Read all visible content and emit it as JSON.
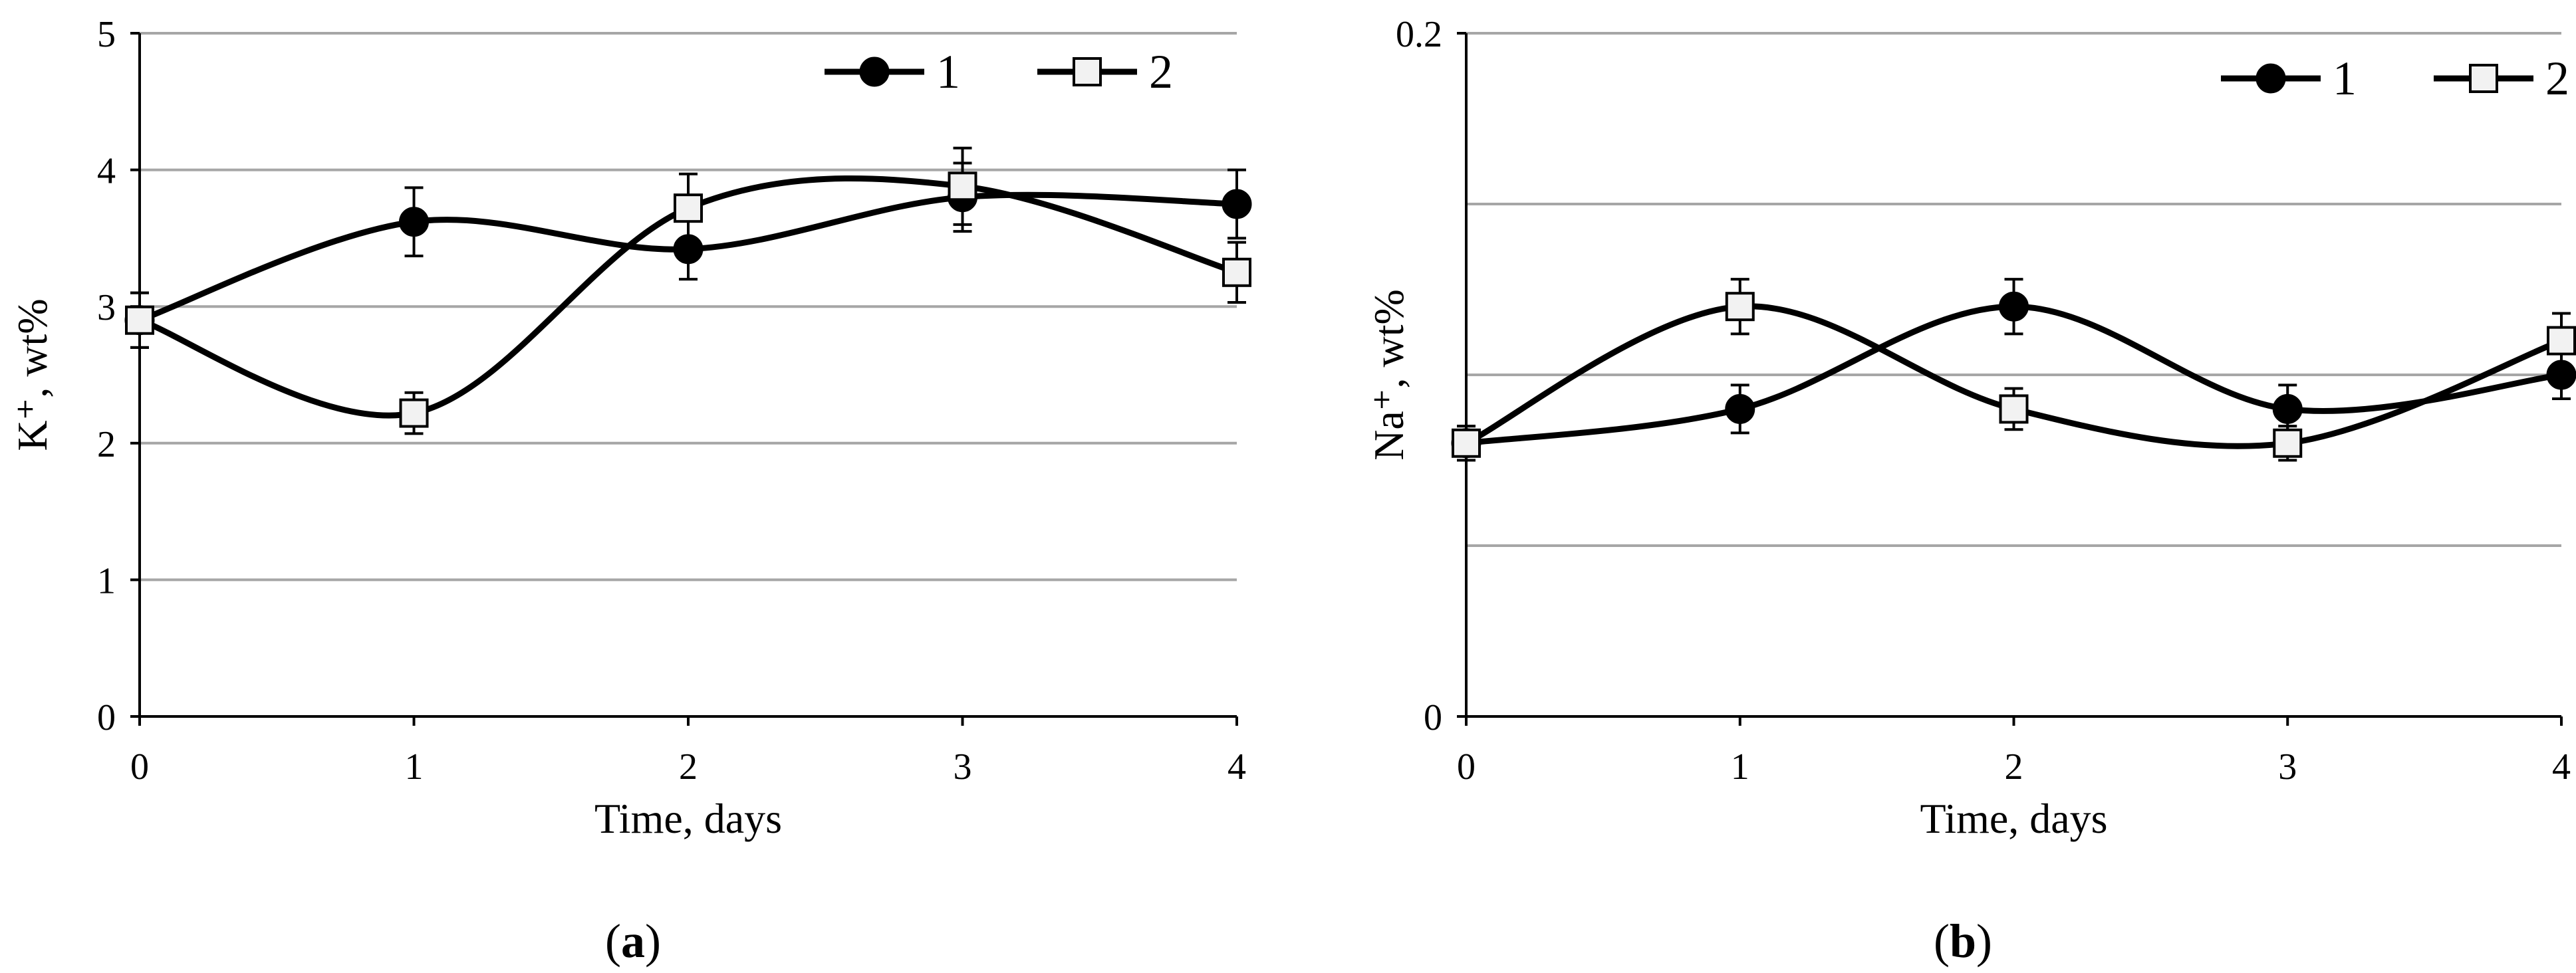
{
  "chart_data": [
    {
      "type": "line",
      "panel_label": {
        "open": "(",
        "letter": "a",
        "close": ")"
      },
      "xlabel": "Time, days",
      "ylabel": "K⁺, wt%",
      "x": [
        0,
        1,
        2,
        3,
        4
      ],
      "x_ticks": [
        "0",
        "1",
        "2",
        "3",
        "4"
      ],
      "xlim": [
        0,
        4
      ],
      "ylim": [
        0,
        5
      ],
      "y_ticks": [
        "0",
        "1",
        "2",
        "3",
        "4",
        "5"
      ],
      "grid": true,
      "legend": "top-right",
      "smooth": true,
      "series": [
        {
          "name": "1",
          "marker": "filled-circle",
          "values": [
            2.9,
            3.62,
            3.42,
            3.8,
            3.75
          ],
          "errors": [
            0.2,
            0.25,
            0.22,
            0.25,
            0.25
          ]
        },
        {
          "name": "2",
          "marker": "open-square",
          "values": [
            2.9,
            2.22,
            3.72,
            3.88,
            3.25
          ],
          "errors": [
            0.2,
            0.15,
            0.25,
            0.28,
            0.22
          ]
        }
      ]
    },
    {
      "type": "line",
      "panel_label": {
        "open": "(",
        "letter": "b",
        "close": ")"
      },
      "xlabel": "Time, days",
      "ylabel": "Na⁺, wt%",
      "x": [
        0,
        1,
        2,
        3,
        4
      ],
      "x_ticks": [
        "0",
        "1",
        "2",
        "3",
        "4"
      ],
      "xlim": [
        0,
        4
      ],
      "ylim": [
        0,
        0.2
      ],
      "y_ticks": [
        "0",
        "0.2"
      ],
      "grid_values": [
        0.05,
        0.1,
        0.15,
        0.2
      ],
      "grid": true,
      "legend": "top-right",
      "smooth": true,
      "series": [
        {
          "name": "1",
          "marker": "filled-circle",
          "values": [
            0.08,
            0.09,
            0.12,
            0.09,
            0.1
          ],
          "errors": [
            0.005,
            0.007,
            0.008,
            0.007,
            0.007
          ]
        },
        {
          "name": "2",
          "marker": "open-square",
          "values": [
            0.08,
            0.12,
            0.09,
            0.08,
            0.11
          ],
          "errors": [
            0.005,
            0.008,
            0.006,
            0.005,
            0.008
          ]
        }
      ]
    }
  ]
}
